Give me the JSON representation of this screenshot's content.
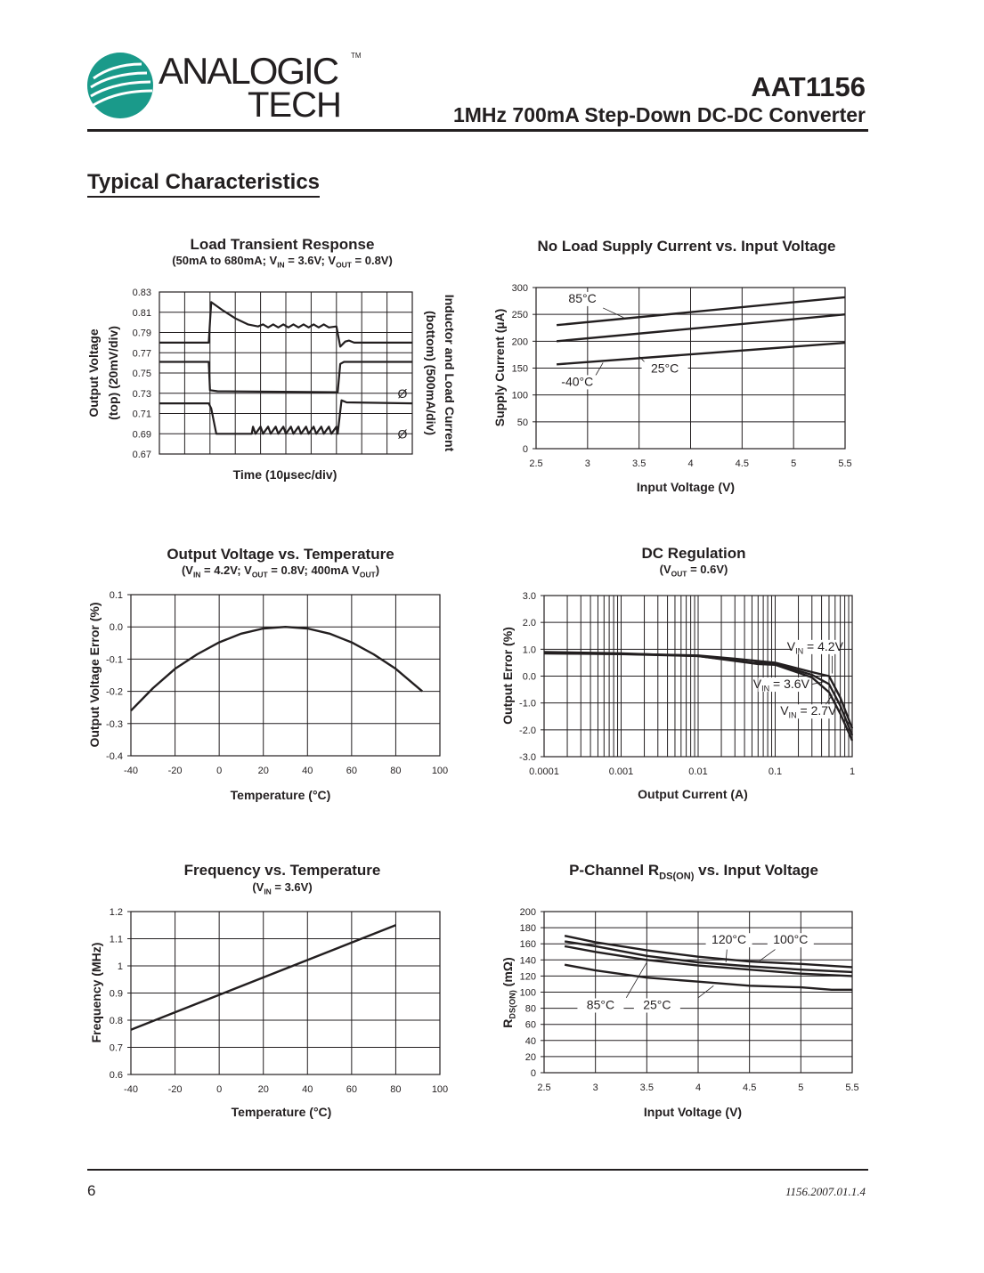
{
  "header": {
    "logo_line1": "ANALOGIC",
    "logo_line2": "TECH",
    "logo_tm": "TM",
    "logo_color": "#1a9a8a",
    "part_number": "AAT1156",
    "subtitle": "1MHz 700mA Step-Down DC-DC Converter"
  },
  "section_title": "Typical Characteristics",
  "footer": {
    "page_number": "6",
    "doc_number": "1156.2007.01.1.4"
  },
  "chart_data": [
    {
      "type": "line",
      "title": [
        {
          "t": "Load Transient Response"
        }
      ],
      "subtitle": [
        {
          "t": "(50mA to 680mA; V"
        },
        {
          "sub": "IN"
        },
        {
          "t": " = 3.6V;  V"
        },
        {
          "sub": "OUT"
        },
        {
          "t": " = 0.8V)"
        }
      ],
      "xlabel": [
        {
          "t": "Time (10µsec/div)"
        }
      ],
      "ylabel_lines": [
        "Output Voltage",
        "(top) (20mV/div)"
      ],
      "y2label_lines": [
        "Inductor and Load Current",
        "(bottom) (500mA/div)"
      ],
      "xlim": [
        0,
        10
      ],
      "ylim": [
        0.67,
        0.83
      ],
      "yticks": [
        0.83,
        0.81,
        0.79,
        0.77,
        0.75,
        0.73,
        0.71,
        0.69,
        0.67
      ],
      "grid": true,
      "x_divisions": 10,
      "ground_markers": [
        {
          "y": 0.73,
          "label": "Ø"
        },
        {
          "y": 0.69,
          "label": "Ø"
        }
      ],
      "series": [
        {
          "points": [
            [
              0,
              0.78
            ],
            [
              1.95,
              0.78
            ],
            [
              2.05,
              0.82
            ],
            [
              2.5,
              0.812
            ],
            [
              3.0,
              0.804
            ],
            [
              3.5,
              0.798
            ],
            [
              3.9,
              0.796
            ],
            [
              4.1,
              0.798
            ],
            [
              4.3,
              0.795
            ],
            [
              4.5,
              0.798
            ],
            [
              4.7,
              0.795
            ],
            [
              4.9,
              0.798
            ],
            [
              5.1,
              0.795
            ],
            [
              5.3,
              0.798
            ],
            [
              5.5,
              0.795
            ],
            [
              5.7,
              0.798
            ],
            [
              5.9,
              0.795
            ],
            [
              6.1,
              0.798
            ],
            [
              6.3,
              0.795
            ],
            [
              6.5,
              0.798
            ],
            [
              6.7,
              0.795
            ],
            [
              7.0,
              0.796
            ],
            [
              7.15,
              0.776
            ],
            [
              7.35,
              0.781
            ],
            [
              7.5,
              0.782
            ],
            [
              7.7,
              0.78
            ],
            [
              10,
              0.78
            ]
          ]
        },
        {
          "points": [
            [
              0,
              0.761
            ],
            [
              1.95,
              0.761
            ],
            [
              2.0,
              0.733
            ],
            [
              2.3,
              0.732
            ],
            [
              7.05,
              0.731
            ],
            [
              7.15,
              0.759
            ],
            [
              7.3,
              0.761
            ],
            [
              10,
              0.761
            ]
          ]
        },
        {
          "points": [
            [
              0,
              0.72
            ],
            [
              1.95,
              0.72
            ],
            [
              2.05,
              0.715
            ],
            [
              2.25,
              0.69
            ],
            [
              3.65,
              0.69
            ],
            [
              3.7,
              0.697
            ],
            [
              3.8,
              0.69
            ],
            [
              4.0,
              0.697
            ],
            [
              4.1,
              0.69
            ],
            [
              4.3,
              0.697
            ],
            [
              4.4,
              0.69
            ],
            [
              4.6,
              0.697
            ],
            [
              4.7,
              0.69
            ],
            [
              4.9,
              0.697
            ],
            [
              5.0,
              0.69
            ],
            [
              5.2,
              0.697
            ],
            [
              5.3,
              0.69
            ],
            [
              5.5,
              0.697
            ],
            [
              5.6,
              0.69
            ],
            [
              5.8,
              0.697
            ],
            [
              5.9,
              0.69
            ],
            [
              6.1,
              0.697
            ],
            [
              6.2,
              0.69
            ],
            [
              6.4,
              0.697
            ],
            [
              6.5,
              0.69
            ],
            [
              6.7,
              0.697
            ],
            [
              6.8,
              0.69
            ],
            [
              7.0,
              0.697
            ],
            [
              7.05,
              0.69
            ],
            [
              7.2,
              0.723
            ],
            [
              7.4,
              0.721
            ],
            [
              10,
              0.72
            ]
          ]
        }
      ]
    },
    {
      "type": "line",
      "title": [
        {
          "t": "No Load Supply Current vs. Input Voltage"
        }
      ],
      "xlabel": [
        {
          "t": "Input Voltage (V)"
        }
      ],
      "ylabel": [
        {
          "t": "Supply Current (µA)"
        }
      ],
      "xlim": [
        2.5,
        5.5
      ],
      "ylim": [
        0,
        300
      ],
      "xticks": [
        "2.5",
        "3",
        "3.5",
        "4",
        "4.5",
        "5",
        "5.5"
      ],
      "yticks": [
        "0",
        "50",
        "100",
        "150",
        "200",
        "250",
        "300"
      ],
      "grid": true,
      "series": [
        {
          "name": "85°C",
          "points": [
            [
              2.7,
              230
            ],
            [
              5.5,
              282
            ]
          ]
        },
        {
          "name": "25°C",
          "points": [
            [
              2.7,
              200
            ],
            [
              5.5,
              250
            ]
          ]
        },
        {
          "name": "-40°C",
          "points": [
            [
              2.7,
              157
            ],
            [
              5.5,
              197
            ]
          ]
        }
      ]
    },
    {
      "type": "line",
      "title": [
        {
          "t": "Output Voltage vs. Temperature"
        }
      ],
      "subtitle": [
        {
          "t": "(V"
        },
        {
          "sub": "IN"
        },
        {
          "t": " = 4.2V; V"
        },
        {
          "sub": "OUT"
        },
        {
          "t": " = 0.8V; 400mA V"
        },
        {
          "sub": "OUT"
        },
        {
          "t": ")"
        }
      ],
      "xlabel": [
        {
          "t": "Temperature (°C)"
        }
      ],
      "ylabel": [
        {
          "t": "Output Voltage Error (%)"
        }
      ],
      "xlim": [
        -40,
        100
      ],
      "ylim": [
        -0.4,
        0.1
      ],
      "xticks": [
        "-40",
        "-20",
        "0",
        "20",
        "40",
        "60",
        "80",
        "100"
      ],
      "yticks": [
        "-0.4",
        "-0.3",
        "-0.2",
        "-0.1",
        "0.0",
        "0.1"
      ],
      "grid": true,
      "series": [
        {
          "points": [
            [
              -40,
              -0.26
            ],
            [
              -30,
              -0.19
            ],
            [
              -20,
              -0.13
            ],
            [
              -10,
              -0.085
            ],
            [
              0,
              -0.048
            ],
            [
              10,
              -0.021
            ],
            [
              20,
              -0.005
            ],
            [
              30,
              0
            ],
            [
              40,
              -0.005
            ],
            [
              50,
              -0.021
            ],
            [
              60,
              -0.048
            ],
            [
              70,
              -0.085
            ],
            [
              80,
              -0.13
            ],
            [
              92,
              -0.2
            ]
          ]
        }
      ]
    },
    {
      "type": "line",
      "title": [
        {
          "t": "DC Regulation"
        }
      ],
      "subtitle": [
        {
          "t": "(V"
        },
        {
          "sub": "OUT"
        },
        {
          "t": " = 0.6V)"
        }
      ],
      "xlabel": [
        {
          "t": "Output Current (A)"
        }
      ],
      "ylabel": [
        {
          "t": "Output Error (%)"
        }
      ],
      "xscale": "log",
      "xlim": [
        0.0001,
        1
      ],
      "ylim": [
        -3,
        3
      ],
      "xticks": [
        "0.0001",
        "0.001",
        "0.01",
        "0.1",
        "1"
      ],
      "yticks": [
        "-3.0",
        "-2.0",
        "-1.0",
        "0.0",
        "1.0",
        "2.0",
        "3.0"
      ],
      "grid": true,
      "series": [
        {
          "name": [
            {
              "t": "V"
            },
            {
              "sub": "IN"
            },
            {
              "t": " = 4.2V"
            }
          ],
          "points": [
            [
              0.0001,
              0.85
            ],
            [
              0.001,
              0.83
            ],
            [
              0.01,
              0.77
            ],
            [
              0.03,
              0.65
            ],
            [
              0.1,
              0.5
            ],
            [
              0.3,
              0.15
            ],
            [
              0.5,
              0.0
            ],
            [
              0.7,
              -0.8
            ],
            [
              1,
              -1.95
            ]
          ]
        },
        {
          "name": [
            {
              "t": "V"
            },
            {
              "sub": "IN"
            },
            {
              "t": " = 3.6V"
            }
          ],
          "points": [
            [
              0.0001,
              0.85
            ],
            [
              0.001,
              0.82
            ],
            [
              0.01,
              0.75
            ],
            [
              0.05,
              0.5
            ],
            [
              0.1,
              0.45
            ],
            [
              0.3,
              0.05
            ],
            [
              0.5,
              -0.3
            ],
            [
              0.7,
              -1.1
            ],
            [
              1,
              -2.2
            ]
          ]
        },
        {
          "name": [
            {
              "t": "V"
            },
            {
              "sub": "IN"
            },
            {
              "t": " = 2.7V"
            }
          ],
          "points": [
            [
              0.0001,
              0.9
            ],
            [
              0.001,
              0.85
            ],
            [
              0.01,
              0.75
            ],
            [
              0.06,
              0.45
            ],
            [
              0.1,
              0.42
            ],
            [
              0.3,
              -0.05
            ],
            [
              0.5,
              -0.6
            ],
            [
              0.7,
              -1.4
            ],
            [
              1,
              -2.4
            ]
          ]
        }
      ]
    },
    {
      "type": "line",
      "title": [
        {
          "t": "Frequency vs. Temperature"
        }
      ],
      "subtitle": [
        {
          "t": "(V"
        },
        {
          "sub": "IN"
        },
        {
          "t": " = 3.6V)"
        }
      ],
      "xlabel": [
        {
          "t": "Temperature (°C)"
        }
      ],
      "ylabel": [
        {
          "t": "Frequency (MHz)"
        }
      ],
      "xlim": [
        -40,
        100
      ],
      "ylim": [
        0.6,
        1.2
      ],
      "xticks": [
        "-40",
        "-20",
        "0",
        "20",
        "40",
        "60",
        "80",
        "100"
      ],
      "yticks": [
        "0.6",
        "0.7",
        "0.8",
        "0.9",
        "1",
        "1.1",
        "1.2"
      ],
      "grid": true,
      "series": [
        {
          "points": [
            [
              -40,
              0.765
            ],
            [
              80,
              1.15
            ]
          ]
        }
      ]
    },
    {
      "type": "line",
      "title": [
        {
          "t": "P-Channel R"
        },
        {
          "sub": "DS(ON)"
        },
        {
          "t": " vs. Input Voltage"
        }
      ],
      "xlabel": [
        {
          "t": "Input Voltage (V)"
        }
      ],
      "ylabel": [
        {
          "t": "R"
        },
        {
          "sub": "DS(ON)"
        },
        {
          "t": " (mΩ)"
        }
      ],
      "xlim": [
        2.5,
        5.5
      ],
      "ylim": [
        0,
        200
      ],
      "xticks": [
        "2.5",
        "3",
        "3.5",
        "4",
        "4.5",
        "5",
        "5.5"
      ],
      "yticks": [
        "0",
        "20",
        "40",
        "60",
        "80",
        "100",
        "120",
        "140",
        "160",
        "180",
        "200"
      ],
      "grid": true,
      "series": [
        {
          "name": "120°C",
          "points": [
            [
              2.7,
              170
            ],
            [
              3,
              162
            ],
            [
              3.5,
              152
            ],
            [
              4,
              144
            ],
            [
              4.5,
              138
            ],
            [
              5,
              135
            ],
            [
              5.5,
              131
            ]
          ]
        },
        {
          "name": "100°C",
          "points": [
            [
              2.7,
              163
            ],
            [
              3,
              157
            ],
            [
              3.5,
              145
            ],
            [
              4,
              137
            ],
            [
              4.5,
              132
            ],
            [
              5,
              128
            ],
            [
              5.5,
              125
            ]
          ]
        },
        {
          "name": "85°C",
          "points": [
            [
              2.7,
              157
            ],
            [
              3,
              150
            ],
            [
              3.5,
              140
            ],
            [
              4,
              133
            ],
            [
              4.5,
              128
            ],
            [
              5,
              123
            ],
            [
              5.5,
              120
            ]
          ]
        },
        {
          "name": "25°C",
          "points": [
            [
              2.7,
              134
            ],
            [
              3,
              127
            ],
            [
              3.5,
              118
            ],
            [
              4,
              113
            ],
            [
              4.5,
              108
            ],
            [
              5,
              106
            ],
            [
              5.3,
              103
            ],
            [
              5.5,
              103
            ]
          ]
        }
      ]
    }
  ]
}
